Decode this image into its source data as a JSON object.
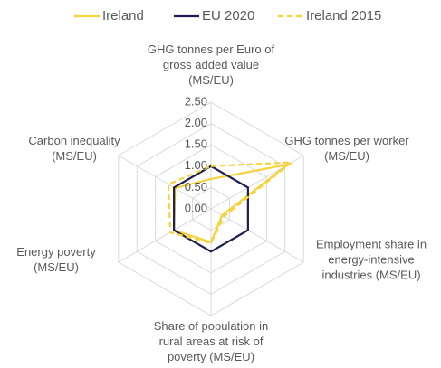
{
  "chart_data": {
    "type": "radar",
    "categories": [
      "GHG tonnes per Euro of gross added value (MS/EU)",
      "GHG tonnes per worker (MS/EU)",
      "Employment share in energy-intensive industries (MS/EU)",
      "Share of population in rural areas at risk of poverty (MS/EU)",
      "Energy poverty (MS/EU)",
      "Carbon inequality (MS/EU)"
    ],
    "series": [
      {
        "name": "Ireland",
        "color": "#f5d33a",
        "dashed": false,
        "values": [
          0.7,
          2.08,
          0.3,
          0.78,
          1.0,
          0.97
        ]
      },
      {
        "name": "EU 2020",
        "color": "#1f1f4f",
        "dashed": false,
        "values": [
          1.0,
          1.0,
          1.0,
          1.0,
          1.0,
          1.0
        ]
      },
      {
        "name": "Ireland 2015",
        "color": "#f5d33a",
        "dashed": true,
        "values": [
          1.0,
          2.18,
          0.35,
          0.8,
          1.1,
          1.15
        ]
      }
    ],
    "ylim": [
      0,
      2.5
    ],
    "yticks": [
      {
        "value": 0,
        "label": "0.00"
      },
      {
        "value": 0.5,
        "label": "0.50"
      },
      {
        "value": 1,
        "label": "1.00"
      },
      {
        "value": 1.5,
        "label": "1.50"
      },
      {
        "value": 2,
        "label": "2.00"
      },
      {
        "value": 2.5,
        "label": "2.50"
      }
    ],
    "grid": true,
    "legend": "top"
  }
}
